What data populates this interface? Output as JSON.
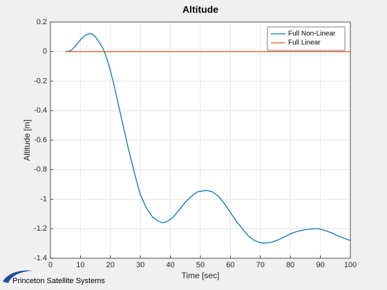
{
  "chart_data": {
    "type": "line",
    "title": "Altitude",
    "xlabel": "Time [sec]",
    "ylabel": "Altitude [m]",
    "xlim": [
      0,
      100
    ],
    "xticks": [
      0,
      10,
      20,
      30,
      40,
      50,
      60,
      70,
      80,
      90,
      100
    ],
    "ylim": [
      -1.4,
      0.2
    ],
    "yticks": [
      -1.4,
      -1.2,
      -1,
      -0.8,
      -0.6,
      -0.4,
      -0.2,
      0,
      0.2
    ],
    "grid": true,
    "legend": "northeast",
    "series": [
      {
        "name": "Full Non-Linear",
        "color": "#0072bd",
        "x": [
          5,
          6,
          7,
          8,
          9,
          10,
          11,
          12,
          13,
          14,
          15,
          16,
          17,
          18,
          19,
          20,
          21,
          22,
          23,
          24,
          25,
          26,
          27,
          28,
          29,
          30,
          32,
          34,
          36,
          37.5,
          39,
          41,
          43,
          45,
          47,
          49,
          52,
          54,
          56,
          58,
          60,
          62,
          64,
          66,
          68,
          70,
          72,
          74,
          76,
          78,
          80,
          82,
          84,
          86,
          88,
          89,
          90,
          92,
          94,
          96,
          98,
          100
        ],
        "values": [
          0,
          0.002,
          0.01,
          0.03,
          0.055,
          0.08,
          0.1,
          0.115,
          0.122,
          0.118,
          0.1,
          0.07,
          0.04,
          0,
          -0.06,
          -0.13,
          -0.21,
          -0.3,
          -0.39,
          -0.48,
          -0.57,
          -0.66,
          -0.74,
          -0.82,
          -0.9,
          -0.97,
          -1.06,
          -1.12,
          -1.15,
          -1.16,
          -1.15,
          -1.12,
          -1.07,
          -1.02,
          -0.98,
          -0.95,
          -0.94,
          -0.95,
          -0.98,
          -1.03,
          -1.09,
          -1.15,
          -1.2,
          -1.25,
          -1.28,
          -1.295,
          -1.297,
          -1.29,
          -1.275,
          -1.255,
          -1.235,
          -1.22,
          -1.21,
          -1.203,
          -1.2,
          -1.2,
          -1.203,
          -1.215,
          -1.23,
          -1.25,
          -1.265,
          -1.28
        ]
      },
      {
        "name": "Full Linear",
        "color": "#d95319",
        "x": [
          5,
          100
        ],
        "values": [
          0,
          0
        ]
      }
    ]
  },
  "footer_text": "Princeton Satellite Systems"
}
